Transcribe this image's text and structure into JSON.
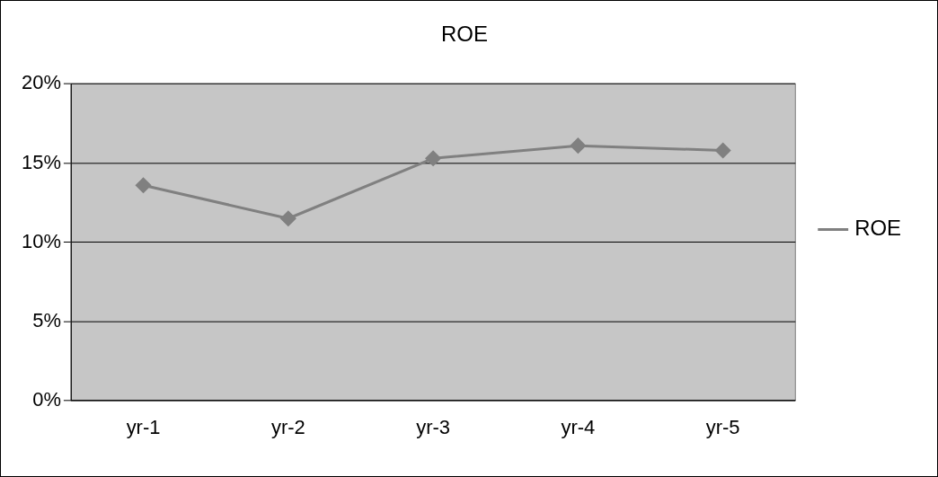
{
  "chart_data": {
    "type": "line",
    "title": "ROE",
    "categories": [
      "yr-1",
      "yr-2",
      "yr-3",
      "yr-4",
      "yr-5"
    ],
    "series": [
      {
        "name": "ROE",
        "color": "#808080",
        "values": [
          13.6,
          11.5,
          15.3,
          16.1,
          15.8
        ]
      }
    ],
    "ylim": [
      0,
      20
    ],
    "yticks": [
      {
        "value": 0,
        "label": "0%"
      },
      {
        "value": 5,
        "label": "5%"
      },
      {
        "value": 10,
        "label": "10%"
      },
      {
        "value": 15,
        "label": "15%"
      },
      {
        "value": 20,
        "label": "20%"
      }
    ],
    "grid": "y",
    "legend": "right",
    "marker": "diamond",
    "line_style": "solid"
  }
}
